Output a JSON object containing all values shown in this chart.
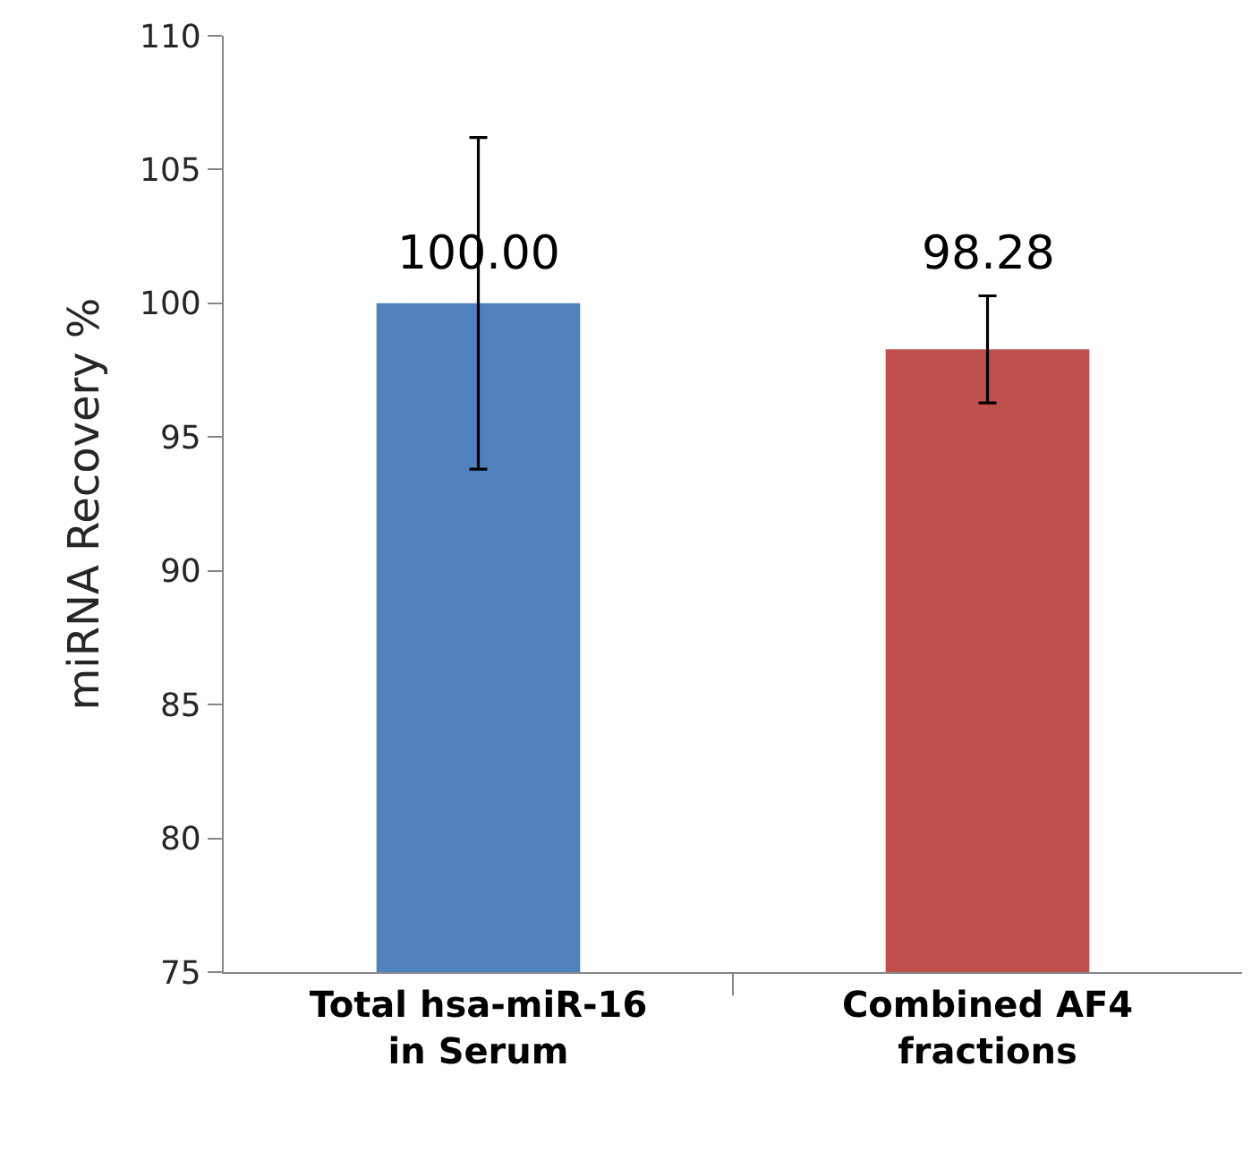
{
  "chart_data": {
    "type": "bar",
    "ylabel": "miRNA Recovery %",
    "categories": [
      "Total hsa-miR-16\nin Serum",
      "Combined AF4\nfractions"
    ],
    "values": [
      100.0,
      98.28
    ],
    "colors": [
      "#4f81bd",
      "#c0504d"
    ],
    "errors": [
      6.2,
      2.0
    ],
    "value_labels": [
      "100.00",
      "98.28"
    ],
    "ylim": [
      75,
      110
    ],
    "yticks": [
      75,
      80,
      85,
      90,
      95,
      100,
      105,
      110
    ]
  }
}
